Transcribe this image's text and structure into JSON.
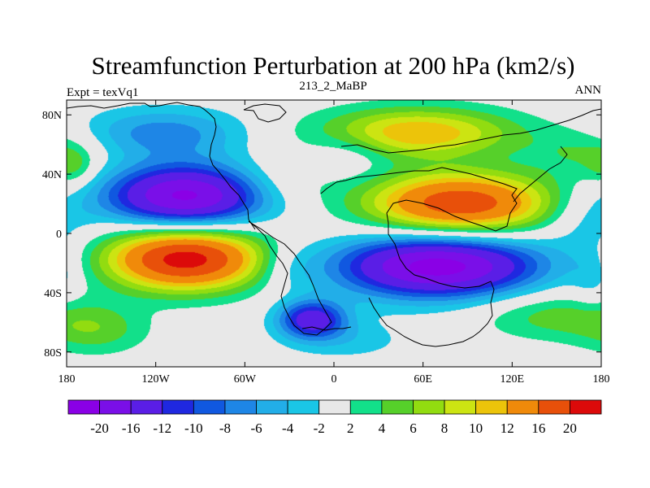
{
  "chart_data": {
    "type": "heatmap",
    "title": "Streamfunction Perturbation at 200 hPa (km2/s)",
    "left_label": "Expt = texVq1",
    "center_label": "213_2_MaBP",
    "right_label": "ANN",
    "x_range": [
      -180,
      180
    ],
    "y_range": [
      -90,
      90
    ],
    "x_ticks": [
      {
        "value": -180,
        "label": "180"
      },
      {
        "value": -120,
        "label": "120W"
      },
      {
        "value": -60,
        "label": "60W"
      },
      {
        "value": 0,
        "label": "0"
      },
      {
        "value": 60,
        "label": "60E"
      },
      {
        "value": 120,
        "label": "120E"
      },
      {
        "value": 180,
        "label": "180"
      }
    ],
    "y_ticks": [
      {
        "value": 80,
        "label": "80N"
      },
      {
        "value": 40,
        "label": "40N"
      },
      {
        "value": 0,
        "label": "0"
      },
      {
        "value": -40,
        "label": "40S"
      },
      {
        "value": -80,
        "label": "80S"
      }
    ],
    "colorbar": {
      "labels": [
        "-20",
        "-16",
        "-12",
        "-10",
        "-8",
        "-6",
        "-4",
        "-2",
        "2",
        "4",
        "6",
        "8",
        "10",
        "12",
        "16",
        "20"
      ],
      "colors": [
        "#8a00e6",
        "#7a0fe8",
        "#5a1ee6",
        "#1f28e0",
        "#1058e0",
        "#1e86e6",
        "#22aee8",
        "#1ac6e6",
        "#e8e8e8",
        "#12e08a",
        "#56d02a",
        "#92dc10",
        "#cce412",
        "#ecc40a",
        "#f08a0a",
        "#e8500a",
        "#dc0a0a"
      ],
      "levels": [
        -20,
        -16,
        -12,
        -10,
        -8,
        -6,
        -4,
        -2,
        2,
        4,
        6,
        8,
        10,
        12,
        16,
        20
      ]
    },
    "field_features": [
      {
        "lon": -100,
        "lat": 25,
        "amplitude": -21,
        "sx": 38,
        "sy": 15
      },
      {
        "lon": -100,
        "lat": -17,
        "amplitude": 22,
        "sx": 38,
        "sy": 15
      },
      {
        "lon": 85,
        "lat": 20,
        "amplitude": 19,
        "sx": 45,
        "sy": 15
      },
      {
        "lon": 70,
        "lat": -22,
        "amplitude": -22,
        "sx": 48,
        "sy": 15
      },
      {
        "lon": -15,
        "lat": -58,
        "amplitude": -14,
        "sx": 16,
        "sy": 9
      },
      {
        "lon": 55,
        "lat": 68,
        "amplitude": 12,
        "sx": 48,
        "sy": 12
      },
      {
        "lon": -115,
        "lat": 68,
        "amplitude": -7,
        "sx": 40,
        "sy": 12
      },
      {
        "lon": -160,
        "lat": -65,
        "amplitude": 5,
        "sx": 25,
        "sy": 12
      },
      {
        "lon": 145,
        "lat": -55,
        "amplitude": 5,
        "sx": 35,
        "sy": 12
      },
      {
        "lon": 170,
        "lat": 55,
        "amplitude": 4,
        "sx": 25,
        "sy": 12
      },
      {
        "lon": 10,
        "lat": 55,
        "amplitude": -3,
        "sx": 20,
        "sy": 12
      },
      {
        "lon": 170,
        "lat": 10,
        "amplitude": -4,
        "sx": 20,
        "sy": 15
      },
      {
        "lon": -175,
        "lat": 45,
        "amplitude": 4,
        "sx": 10,
        "sy": 10
      },
      {
        "lon": -35,
        "lat": 35,
        "amplitude": 3,
        "sx": 25,
        "sy": 12
      },
      {
        "lon": -30,
        "lat": -22,
        "amplitude": -3,
        "sx": 15,
        "sy": 12
      },
      {
        "lon": 175,
        "lat": -30,
        "amplitude": -3,
        "sx": 10,
        "sy": 15
      },
      {
        "lon": 10,
        "lat": -72,
        "amplitude": -3,
        "sx": 30,
        "sy": 10
      }
    ]
  }
}
